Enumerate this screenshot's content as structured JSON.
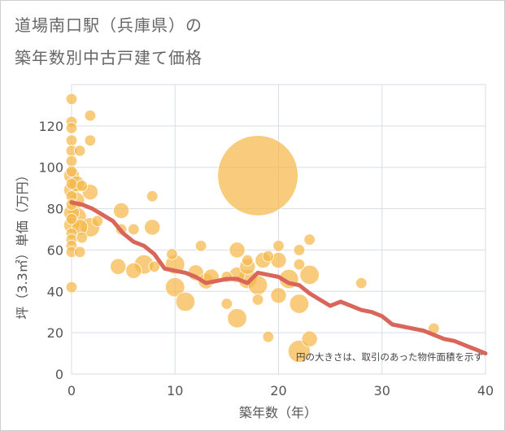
{
  "title": {
    "line1": "道場南口駅（兵庫県）の",
    "line2": "築年数別中古戸建て価格"
  },
  "chart_data": {
    "type": "scatter",
    "title": "道場南口駅（兵庫県）の築年数別中古戸建て価格",
    "xlabel": "築年数（年）",
    "ylabel": "坪（3.3㎡）単価（万円）",
    "xlim": [
      0,
      40
    ],
    "ylim": [
      0,
      140
    ],
    "xticks": [
      "0",
      "10",
      "20",
      "30",
      "40"
    ],
    "yticks": [
      "0",
      "20",
      "40",
      "60",
      "80",
      "100",
      "120"
    ],
    "grid": true,
    "annotation": "円の大きさは、取引のあった物件面積を示す",
    "colors": {
      "bubble": "#f5b94a",
      "line": "#d9665a",
      "grid": "#d6dde6"
    },
    "series": [
      {
        "type": "bubble",
        "points": [
          {
            "x": 0,
            "y": 133,
            "size": 1
          },
          {
            "x": 0,
            "y": 122,
            "size": 1
          },
          {
            "x": 0,
            "y": 119,
            "size": 1
          },
          {
            "x": 0,
            "y": 113,
            "size": 1
          },
          {
            "x": 0,
            "y": 108,
            "size": 1
          },
          {
            "x": 0,
            "y": 103,
            "size": 1
          },
          {
            "x": 0,
            "y": 98,
            "size": 1
          },
          {
            "x": 0,
            "y": 96,
            "size": 2
          },
          {
            "x": 0,
            "y": 92,
            "size": 1
          },
          {
            "x": 0,
            "y": 89,
            "size": 2
          },
          {
            "x": 0,
            "y": 86,
            "size": 1
          },
          {
            "x": 0,
            "y": 82,
            "size": 1
          },
          {
            "x": 0,
            "y": 78,
            "size": 2
          },
          {
            "x": 0,
            "y": 75,
            "size": 1
          },
          {
            "x": 0,
            "y": 72,
            "size": 2
          },
          {
            "x": 0,
            "y": 68,
            "size": 1
          },
          {
            "x": 0,
            "y": 65,
            "size": 1
          },
          {
            "x": 0,
            "y": 62,
            "size": 1
          },
          {
            "x": 0,
            "y": 59,
            "size": 1
          },
          {
            "x": 0,
            "y": 42,
            "size": 1
          },
          {
            "x": 0.5,
            "y": 92,
            "size": 2
          },
          {
            "x": 0.5,
            "y": 84,
            "size": 2
          },
          {
            "x": 0.5,
            "y": 76,
            "size": 3
          },
          {
            "x": 0.8,
            "y": 71,
            "size": 2
          },
          {
            "x": 0.8,
            "y": 108,
            "size": 1
          },
          {
            "x": 0.8,
            "y": 59,
            "size": 1
          },
          {
            "x": 1,
            "y": 91,
            "size": 1
          },
          {
            "x": 1,
            "y": 66,
            "size": 1
          },
          {
            "x": 1.8,
            "y": 125,
            "size": 1
          },
          {
            "x": 1.8,
            "y": 113,
            "size": 1
          },
          {
            "x": 1.8,
            "y": 88,
            "size": 2
          },
          {
            "x": 1.8,
            "y": 71,
            "size": 3
          },
          {
            "x": 2.5,
            "y": 74,
            "size": 1
          },
          {
            "x": 4.8,
            "y": 79,
            "size": 2
          },
          {
            "x": 4.8,
            "y": 70,
            "size": 1
          },
          {
            "x": 4.5,
            "y": 52,
            "size": 2
          },
          {
            "x": 6,
            "y": 70,
            "size": 1
          },
          {
            "x": 6,
            "y": 50,
            "size": 2
          },
          {
            "x": 7,
            "y": 53,
            "size": 3
          },
          {
            "x": 7.8,
            "y": 86,
            "size": 1
          },
          {
            "x": 7.8,
            "y": 71,
            "size": 2
          },
          {
            "x": 8,
            "y": 52,
            "size": 1
          },
          {
            "x": 9.7,
            "y": 58,
            "size": 1
          },
          {
            "x": 10,
            "y": 53,
            "size": 3
          },
          {
            "x": 10,
            "y": 42,
            "size": 3
          },
          {
            "x": 11,
            "y": 35,
            "size": 3
          },
          {
            "x": 12,
            "y": 49,
            "size": 2
          },
          {
            "x": 12.5,
            "y": 62,
            "size": 1
          },
          {
            "x": 13,
            "y": 45,
            "size": 2
          },
          {
            "x": 13.5,
            "y": 47,
            "size": 2
          },
          {
            "x": 15,
            "y": 34,
            "size": 1
          },
          {
            "x": 15,
            "y": 47,
            "size": 1
          },
          {
            "x": 16,
            "y": 60,
            "size": 2
          },
          {
            "x": 16,
            "y": 48,
            "size": 2
          },
          {
            "x": 16,
            "y": 27,
            "size": 3
          },
          {
            "x": 17,
            "y": 55,
            "size": 1
          },
          {
            "x": 17,
            "y": 52,
            "size": 2
          },
          {
            "x": 17,
            "y": 46,
            "size": 3
          },
          {
            "x": 18,
            "y": 96,
            "size": 10
          },
          {
            "x": 18,
            "y": 43,
            "size": 3
          },
          {
            "x": 18,
            "y": 36,
            "size": 1
          },
          {
            "x": 18.5,
            "y": 55,
            "size": 2
          },
          {
            "x": 19,
            "y": 18,
            "size": 1
          },
          {
            "x": 19,
            "y": 57,
            "size": 1
          },
          {
            "x": 20,
            "y": 62,
            "size": 1
          },
          {
            "x": 20,
            "y": 55,
            "size": 2
          },
          {
            "x": 20,
            "y": 38,
            "size": 2
          },
          {
            "x": 21,
            "y": 46,
            "size": 3
          },
          {
            "x": 22,
            "y": 34,
            "size": 3
          },
          {
            "x": 22,
            "y": 11,
            "size": 4
          },
          {
            "x": 22,
            "y": 60,
            "size": 1
          },
          {
            "x": 22,
            "y": 53,
            "size": 1
          },
          {
            "x": 23,
            "y": 65,
            "size": 1
          },
          {
            "x": 23,
            "y": 48,
            "size": 3
          },
          {
            "x": 23,
            "y": 17,
            "size": 2
          },
          {
            "x": 28,
            "y": 44,
            "size": 1
          },
          {
            "x": 35,
            "y": 22,
            "size": 1
          }
        ]
      },
      {
        "type": "line",
        "x": [
          0,
          1,
          2,
          3,
          4,
          5,
          6,
          7,
          8,
          9,
          10,
          11,
          12,
          13,
          14,
          15,
          16,
          17,
          18,
          19,
          20,
          21,
          22,
          23,
          24,
          25,
          26,
          27,
          28,
          29,
          30,
          31,
          32,
          33,
          34,
          35,
          36,
          37,
          38,
          39,
          40
        ],
        "y": [
          83,
          82,
          80,
          77,
          74,
          68,
          64,
          62,
          58,
          51,
          50,
          49,
          47,
          44,
          45,
          46,
          46,
          44,
          49,
          48,
          47,
          44,
          43,
          39,
          36,
          33,
          35,
          33,
          31,
          30,
          28,
          24,
          23,
          22,
          21,
          19,
          17,
          16,
          14,
          12,
          10
        ]
      }
    ]
  }
}
